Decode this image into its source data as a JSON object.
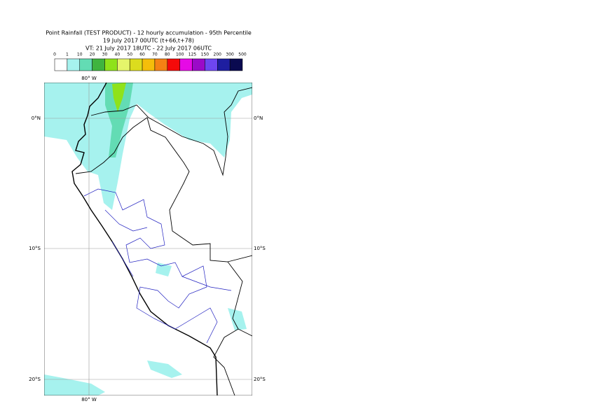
{
  "header": {
    "title": "Point Rainfall (TEST PRODUCT) - 12 hourly accumulation - 95th Percentile",
    "line2": "19 July 2017 00UTC (t+66,t+78)",
    "line3": "VT: 21 July 2017 18UTC - 22 July 2017 06UTC"
  },
  "legend": {
    "labels": [
      "0",
      "1",
      "10",
      "20",
      "30",
      "40",
      "50",
      "60",
      "70",
      "80",
      "100",
      "125",
      "150",
      "200",
      "300",
      "500"
    ],
    "colors": [
      "#ffffff",
      "#a6f2ee",
      "#63dcb4",
      "#3fb43f",
      "#8fe21a",
      "#e5f56b",
      "#dcdc1e",
      "#f5be0a",
      "#f58214",
      "#f50a0a",
      "#e60ae6",
      "#9b0ac8",
      "#6e46f0",
      "#1e1ea0",
      "#0a0a50"
    ]
  },
  "map": {
    "lon_label": "80° W",
    "lat_labels": [
      "0°N",
      "10°S",
      "20°S"
    ]
  }
}
